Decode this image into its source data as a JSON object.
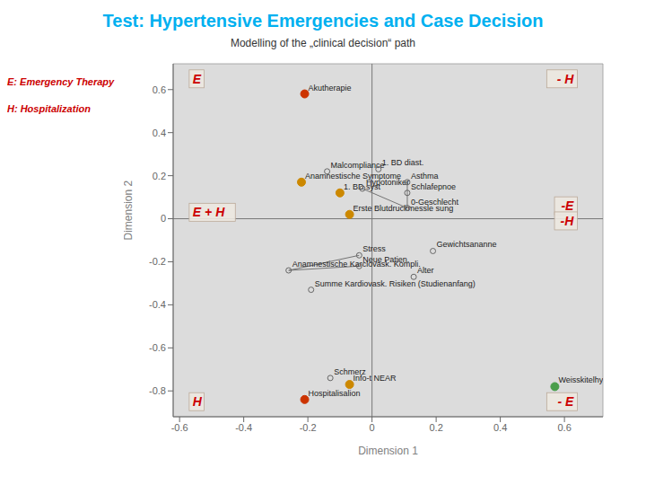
{
  "chart_data": {
    "type": "scatter",
    "title": "Test: Hypertensive Emergencies and Case Decision",
    "title_color": "#00b0f0",
    "subtitle": "Modelling of the „clinical decision“ path",
    "subtitle_color": "#333333",
    "notes": {
      "texts": [
        "E: Emergency Therapy",
        "H: Hospitalization"
      ],
      "color": "#cc0000"
    },
    "xlabel": "Dimension 1",
    "ylabel": "Dimension 2",
    "xlim": [
      -0.62,
      0.72
    ],
    "ylim": [
      -0.92,
      0.72
    ],
    "xticks": [
      -0.6,
      -0.4,
      -0.2,
      0,
      0.2,
      0.4,
      0.6
    ],
    "yticks": [
      -0.8,
      -0.6,
      -0.4,
      -0.2,
      0,
      0.2,
      0.4,
      0.6
    ],
    "grid": false,
    "background": "#dcdcdc",
    "reference_lines": {
      "x": [
        0
      ],
      "y": [
        0
      ],
      "color": "#777777"
    },
    "label_color": "#222222",
    "series": [
      {
        "marker": "circle",
        "x": [
          -0.21,
          -0.21,
          0.57,
          -0.07,
          -0.07,
          -0.22,
          -0.1
        ],
        "y": [
          0.58,
          -0.84,
          -0.78,
          -0.77,
          0.02,
          0.17,
          0.12
        ],
        "labels": [
          "Akutherapie",
          "Hospitalisalion",
          "Weisskitelhyperonie",
          "Info-t NEAR",
          "Erste Blutdruckmessle sung",
          "Anamnestische Symptome",
          "1. BD syst"
        ],
        "colors": [
          "#cc3300",
          "#cc3300",
          "#4a9e4a",
          "#cc8800",
          "#cc8800",
          "#cc8800",
          "#cc8800"
        ]
      },
      {
        "marker": "open_circle",
        "color": "#666666",
        "x": [
          -0.13,
          -0.14,
          0.02,
          -0.03,
          0.11,
          0.11,
          0.11,
          -0.26,
          -0.19,
          -0.04,
          -0.04,
          0.13,
          0.19
        ],
        "y": [
          -0.74,
          0.22,
          0.23,
          0.14,
          0.17,
          0.12,
          0.05,
          -0.24,
          -0.33,
          -0.17,
          -0.22,
          -0.27,
          -0.15
        ],
        "labels": [
          "Schmerz",
          "Malcompliance",
          "1. BD diast.",
          "Hypotoniker",
          "Asthma",
          "Schlafepnoe",
          "0-Geschlecht",
          "Anamnestische Karciovask. Kompli.",
          "Summe Kardiovask. Risiken (Studienanfang)",
          "Stress",
          "Neue Patien.",
          "Alter",
          "Gewichtsananne"
        ]
      }
    ],
    "segments": {
      "color": "#666666",
      "lines": [
        [
          -0.26,
          -0.24,
          -0.04,
          -0.17
        ],
        [
          -0.26,
          -0.24,
          -0.04,
          -0.22
        ],
        [
          0.11,
          0.17,
          0.11,
          0.12
        ],
        [
          0.11,
          0.12,
          0.11,
          0.05
        ],
        [
          -0.03,
          0.14,
          0.11,
          0.05
        ]
      ]
    },
    "annotation_box": {
      "color": "#ece8e0",
      "edge_color": "#bbaa99"
    },
    "annotations": [
      {
        "text": "E",
        "x": -0.57,
        "y": 0.65,
        "color": "#cc0000",
        "align": "left"
      },
      {
        "text": "- H",
        "x": 0.64,
        "y": 0.65,
        "color": "#cc0000",
        "align": "right"
      },
      {
        "text": "E + H",
        "x": -0.57,
        "y": 0.03,
        "color": "#cc0000",
        "align": "left"
      },
      {
        "text": "-E",
        "x": 0.64,
        "y": 0.06,
        "color": "#cc0000",
        "align": "right"
      },
      {
        "text": "-H",
        "x": 0.64,
        "y": -0.01,
        "color": "#cc0000",
        "align": "right"
      },
      {
        "text": "H",
        "x": -0.57,
        "y": -0.85,
        "color": "#cc0000",
        "align": "left"
      },
      {
        "text": "- E",
        "x": 0.64,
        "y": -0.85,
        "color": "#cc0000",
        "align": "right"
      }
    ]
  }
}
